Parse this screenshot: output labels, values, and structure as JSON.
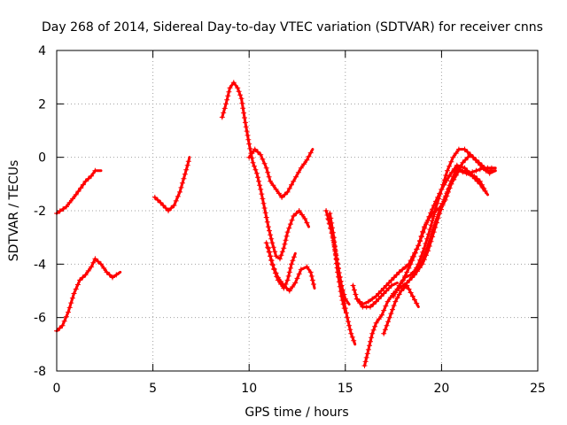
{
  "chart_data": {
    "type": "scatter",
    "title": "Day 268 of 2014, Sidereal Day-to-day VTEC variation (SDTVAR) for receiver cnns",
    "xlabel": "GPS time / hours",
    "ylabel": "SDTVAR / TECUs",
    "xlim": [
      0,
      25
    ],
    "ylim": [
      -8,
      4
    ],
    "xticks": [
      0,
      5,
      10,
      15,
      20,
      25
    ],
    "yticks": [
      -8,
      -6,
      -4,
      -2,
      0,
      2,
      4
    ],
    "xtick_labels": [
      "0",
      "5",
      "10",
      "15",
      "20",
      "25"
    ],
    "ytick_labels": [
      "-8",
      "-6",
      "-4",
      "-2",
      "0",
      "2",
      "4"
    ],
    "grid": true,
    "marker": "+",
    "color": "#ff0000",
    "segments": [
      [
        [
          0.0,
          -2.1
        ],
        [
          0.5,
          -1.85
        ],
        [
          1.0,
          -1.4
        ],
        [
          1.5,
          -0.9
        ],
        [
          1.8,
          -0.7
        ],
        [
          2.0,
          -0.5
        ],
        [
          2.3,
          -0.5
        ]
      ],
      [
        [
          0.0,
          -6.5
        ],
        [
          0.3,
          -6.3
        ],
        [
          0.6,
          -5.8
        ],
        [
          0.9,
          -5.1
        ],
        [
          1.2,
          -4.6
        ],
        [
          1.5,
          -4.4
        ],
        [
          1.8,
          -4.1
        ],
        [
          2.0,
          -3.8
        ],
        [
          2.3,
          -4.0
        ],
        [
          2.6,
          -4.3
        ],
        [
          2.9,
          -4.5
        ],
        [
          3.3,
          -4.3
        ]
      ],
      [
        [
          5.1,
          -1.5
        ],
        [
          5.4,
          -1.7
        ],
        [
          5.8,
          -2.0
        ],
        [
          6.1,
          -1.8
        ],
        [
          6.4,
          -1.3
        ],
        [
          6.6,
          -0.8
        ],
        [
          6.8,
          -0.3
        ],
        [
          6.9,
          0.0
        ]
      ],
      [
        [
          8.6,
          1.5
        ],
        [
          8.8,
          2.0
        ],
        [
          9.0,
          2.6
        ],
        [
          9.2,
          2.8
        ],
        [
          9.4,
          2.6
        ],
        [
          9.6,
          2.2
        ],
        [
          9.8,
          1.3
        ],
        [
          10.0,
          0.5
        ],
        [
          10.2,
          -0.2
        ],
        [
          10.4,
          -0.6
        ],
        [
          10.6,
          -1.2
        ],
        [
          10.8,
          -1.9
        ],
        [
          11.0,
          -2.6
        ],
        [
          11.2,
          -3.2
        ],
        [
          11.4,
          -3.7
        ],
        [
          11.6,
          -3.8
        ],
        [
          11.8,
          -3.4
        ],
        [
          12.0,
          -2.8
        ],
        [
          12.3,
          -2.2
        ],
        [
          12.6,
          -2.0
        ],
        [
          12.9,
          -2.3
        ],
        [
          13.1,
          -2.6
        ]
      ],
      [
        [
          10.0,
          0.0
        ],
        [
          10.3,
          0.3
        ],
        [
          10.6,
          0.1
        ],
        [
          10.9,
          -0.4
        ],
        [
          11.1,
          -0.9
        ],
        [
          11.4,
          -1.2
        ],
        [
          11.7,
          -1.5
        ],
        [
          12.0,
          -1.3
        ],
        [
          12.3,
          -0.9
        ],
        [
          12.7,
          -0.4
        ],
        [
          13.0,
          -0.1
        ],
        [
          13.3,
          0.3
        ]
      ],
      [
        [
          11.0,
          -3.4
        ],
        [
          11.2,
          -4.0
        ],
        [
          11.5,
          -4.5
        ],
        [
          11.8,
          -4.8
        ],
        [
          12.1,
          -5.0
        ],
        [
          12.4,
          -4.7
        ],
        [
          12.7,
          -4.2
        ],
        [
          13.0,
          -4.1
        ],
        [
          13.2,
          -4.3
        ],
        [
          13.4,
          -4.9
        ]
      ],
      [
        [
          10.9,
          -3.2
        ],
        [
          11.1,
          -3.7
        ],
        [
          11.3,
          -4.2
        ],
        [
          11.5,
          -4.6
        ],
        [
          11.8,
          -4.9
        ],
        [
          12.0,
          -4.6
        ],
        [
          12.2,
          -4.0
        ],
        [
          12.4,
          -3.6
        ]
      ],
      [
        [
          14.0,
          -2.0
        ],
        [
          14.2,
          -2.5
        ],
        [
          14.4,
          -3.2
        ],
        [
          14.6,
          -4.0
        ],
        [
          14.8,
          -4.8
        ],
        [
          15.0,
          -5.3
        ],
        [
          15.2,
          -5.5
        ]
      ],
      [
        [
          14.1,
          -2.3
        ],
        [
          14.3,
          -2.8
        ],
        [
          14.5,
          -3.6
        ],
        [
          14.7,
          -4.5
        ],
        [
          14.9,
          -5.3
        ],
        [
          15.1,
          -6.0
        ],
        [
          15.3,
          -6.6
        ],
        [
          15.5,
          -7.0
        ]
      ],
      [
        [
          14.2,
          -2.1
        ],
        [
          14.4,
          -3.0
        ],
        [
          14.6,
          -4.3
        ],
        [
          14.8,
          -5.2
        ],
        [
          15.0,
          -5.8
        ]
      ],
      [
        [
          15.4,
          -4.8
        ],
        [
          15.6,
          -5.3
        ],
        [
          15.9,
          -5.6
        ],
        [
          16.3,
          -5.6
        ],
        [
          16.6,
          -5.4
        ],
        [
          17.0,
          -5.1
        ],
        [
          17.4,
          -4.8
        ],
        [
          17.7,
          -4.7
        ]
      ],
      [
        [
          15.6,
          -5.3
        ],
        [
          15.9,
          -5.5
        ],
        [
          16.2,
          -5.4
        ],
        [
          16.6,
          -5.2
        ],
        [
          17.0,
          -4.9
        ],
        [
          17.4,
          -4.6
        ],
        [
          17.8,
          -4.3
        ],
        [
          18.3,
          -4.0
        ],
        [
          18.8,
          -3.3
        ],
        [
          19.2,
          -2.5
        ],
        [
          19.6,
          -1.8
        ],
        [
          20.0,
          -1.2
        ],
        [
          20.4,
          -0.7
        ],
        [
          20.8,
          -0.3
        ],
        [
          21.2,
          -0.4
        ],
        [
          21.6,
          -0.7
        ],
        [
          22.0,
          -1.0
        ],
        [
          22.4,
          -1.4
        ]
      ],
      [
        [
          16.0,
          -7.8
        ],
        [
          16.2,
          -7.2
        ],
        [
          16.4,
          -6.6
        ],
        [
          16.6,
          -6.2
        ],
        [
          16.9,
          -5.9
        ],
        [
          17.2,
          -5.4
        ],
        [
          17.5,
          -5.1
        ],
        [
          17.8,
          -4.9
        ],
        [
          18.2,
          -4.7
        ],
        [
          18.6,
          -4.4
        ],
        [
          19.0,
          -4.0
        ],
        [
          19.3,
          -3.5
        ],
        [
          19.6,
          -2.8
        ],
        [
          19.9,
          -2.1
        ],
        [
          20.2,
          -1.5
        ],
        [
          20.5,
          -0.9
        ],
        [
          20.8,
          -0.4
        ],
        [
          21.1,
          -0.5
        ],
        [
          21.4,
          -0.6
        ],
        [
          21.8,
          -0.5
        ],
        [
          22.2,
          -0.4
        ],
        [
          22.8,
          -0.4
        ]
      ],
      [
        [
          17.0,
          -6.6
        ],
        [
          17.3,
          -6.0
        ],
        [
          17.6,
          -5.4
        ],
        [
          17.9,
          -5.0
        ],
        [
          18.2,
          -4.8
        ],
        [
          18.5,
          -5.2
        ],
        [
          18.8,
          -5.6
        ]
      ],
      [
        [
          17.5,
          -5.2
        ],
        [
          17.8,
          -4.8
        ],
        [
          18.1,
          -4.5
        ],
        [
          18.4,
          -4.4
        ],
        [
          18.7,
          -4.2
        ],
        [
          19.0,
          -3.9
        ],
        [
          19.3,
          -3.3
        ],
        [
          19.6,
          -2.6
        ],
        [
          19.9,
          -2.0
        ],
        [
          20.3,
          -1.3
        ],
        [
          20.7,
          -0.7
        ],
        [
          21.1,
          -0.2
        ],
        [
          21.5,
          0.1
        ],
        [
          21.9,
          -0.2
        ],
        [
          22.3,
          -0.5
        ],
        [
          22.8,
          -0.5
        ]
      ],
      [
        [
          18.5,
          -4.4
        ],
        [
          18.8,
          -4.0
        ],
        [
          19.1,
          -3.4
        ],
        [
          19.4,
          -2.7
        ],
        [
          19.7,
          -1.9
        ],
        [
          20.0,
          -1.2
        ],
        [
          20.3,
          -0.5
        ],
        [
          20.6,
          0.0
        ],
        [
          20.9,
          0.3
        ],
        [
          21.2,
          0.3
        ],
        [
          21.5,
          0.1
        ],
        [
          21.8,
          -0.1
        ],
        [
          22.1,
          -0.3
        ],
        [
          22.5,
          -0.6
        ],
        [
          22.8,
          -0.5
        ]
      ],
      [
        [
          18.0,
          -4.6
        ],
        [
          18.4,
          -4.0
        ],
        [
          18.8,
          -3.3
        ],
        [
          19.1,
          -2.6
        ],
        [
          19.5,
          -2.1
        ],
        [
          19.9,
          -1.9
        ],
        [
          20.2,
          -1.6
        ],
        [
          20.5,
          -1.0
        ],
        [
          20.9,
          -0.5
        ],
        [
          21.3,
          -0.6
        ],
        [
          21.7,
          -0.7
        ],
        [
          22.0,
          -0.9
        ],
        [
          22.3,
          -1.3
        ]
      ]
    ]
  }
}
